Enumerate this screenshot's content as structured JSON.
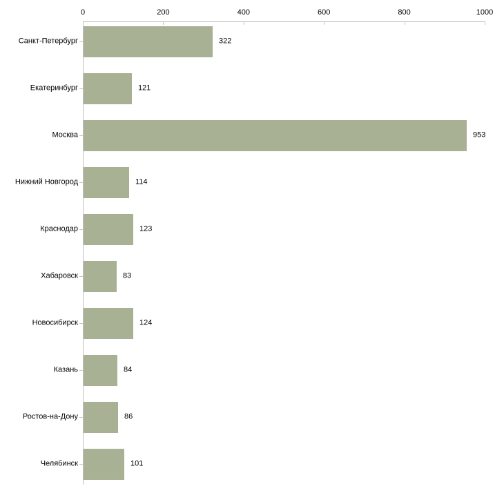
{
  "chart_data": {
    "type": "bar",
    "orientation": "horizontal",
    "title": "",
    "xlabel": "",
    "ylabel": "",
    "categories": [
      "Санкт-Петербург",
      "Екатеринбург",
      "Москва",
      "Нижний Новгород",
      "Краснодар",
      "Хабаровск",
      "Новосибирск",
      "Казань",
      "Ростов-на-Дону",
      "Челябинск"
    ],
    "values": [
      322,
      121,
      953,
      114,
      123,
      83,
      124,
      84,
      86,
      101
    ],
    "value_labels": [
      "322",
      "121",
      "953",
      "114",
      "123",
      "83",
      "124",
      "84",
      "86",
      "101"
    ],
    "x_axis": {
      "position": "top",
      "min": 0,
      "max": 1000,
      "ticks": [
        0,
        200,
        400,
        600,
        800,
        1000
      ],
      "tick_labels": [
        "0",
        "200",
        "400",
        "600",
        "800",
        "1000"
      ]
    },
    "grid": false,
    "legend": false,
    "colors": {
      "bar_fill": "#a9b194",
      "axis_line": "#c0c0c0",
      "tick_mark": "#c8c8a0",
      "text": "#000000",
      "background": "#ffffff"
    }
  }
}
